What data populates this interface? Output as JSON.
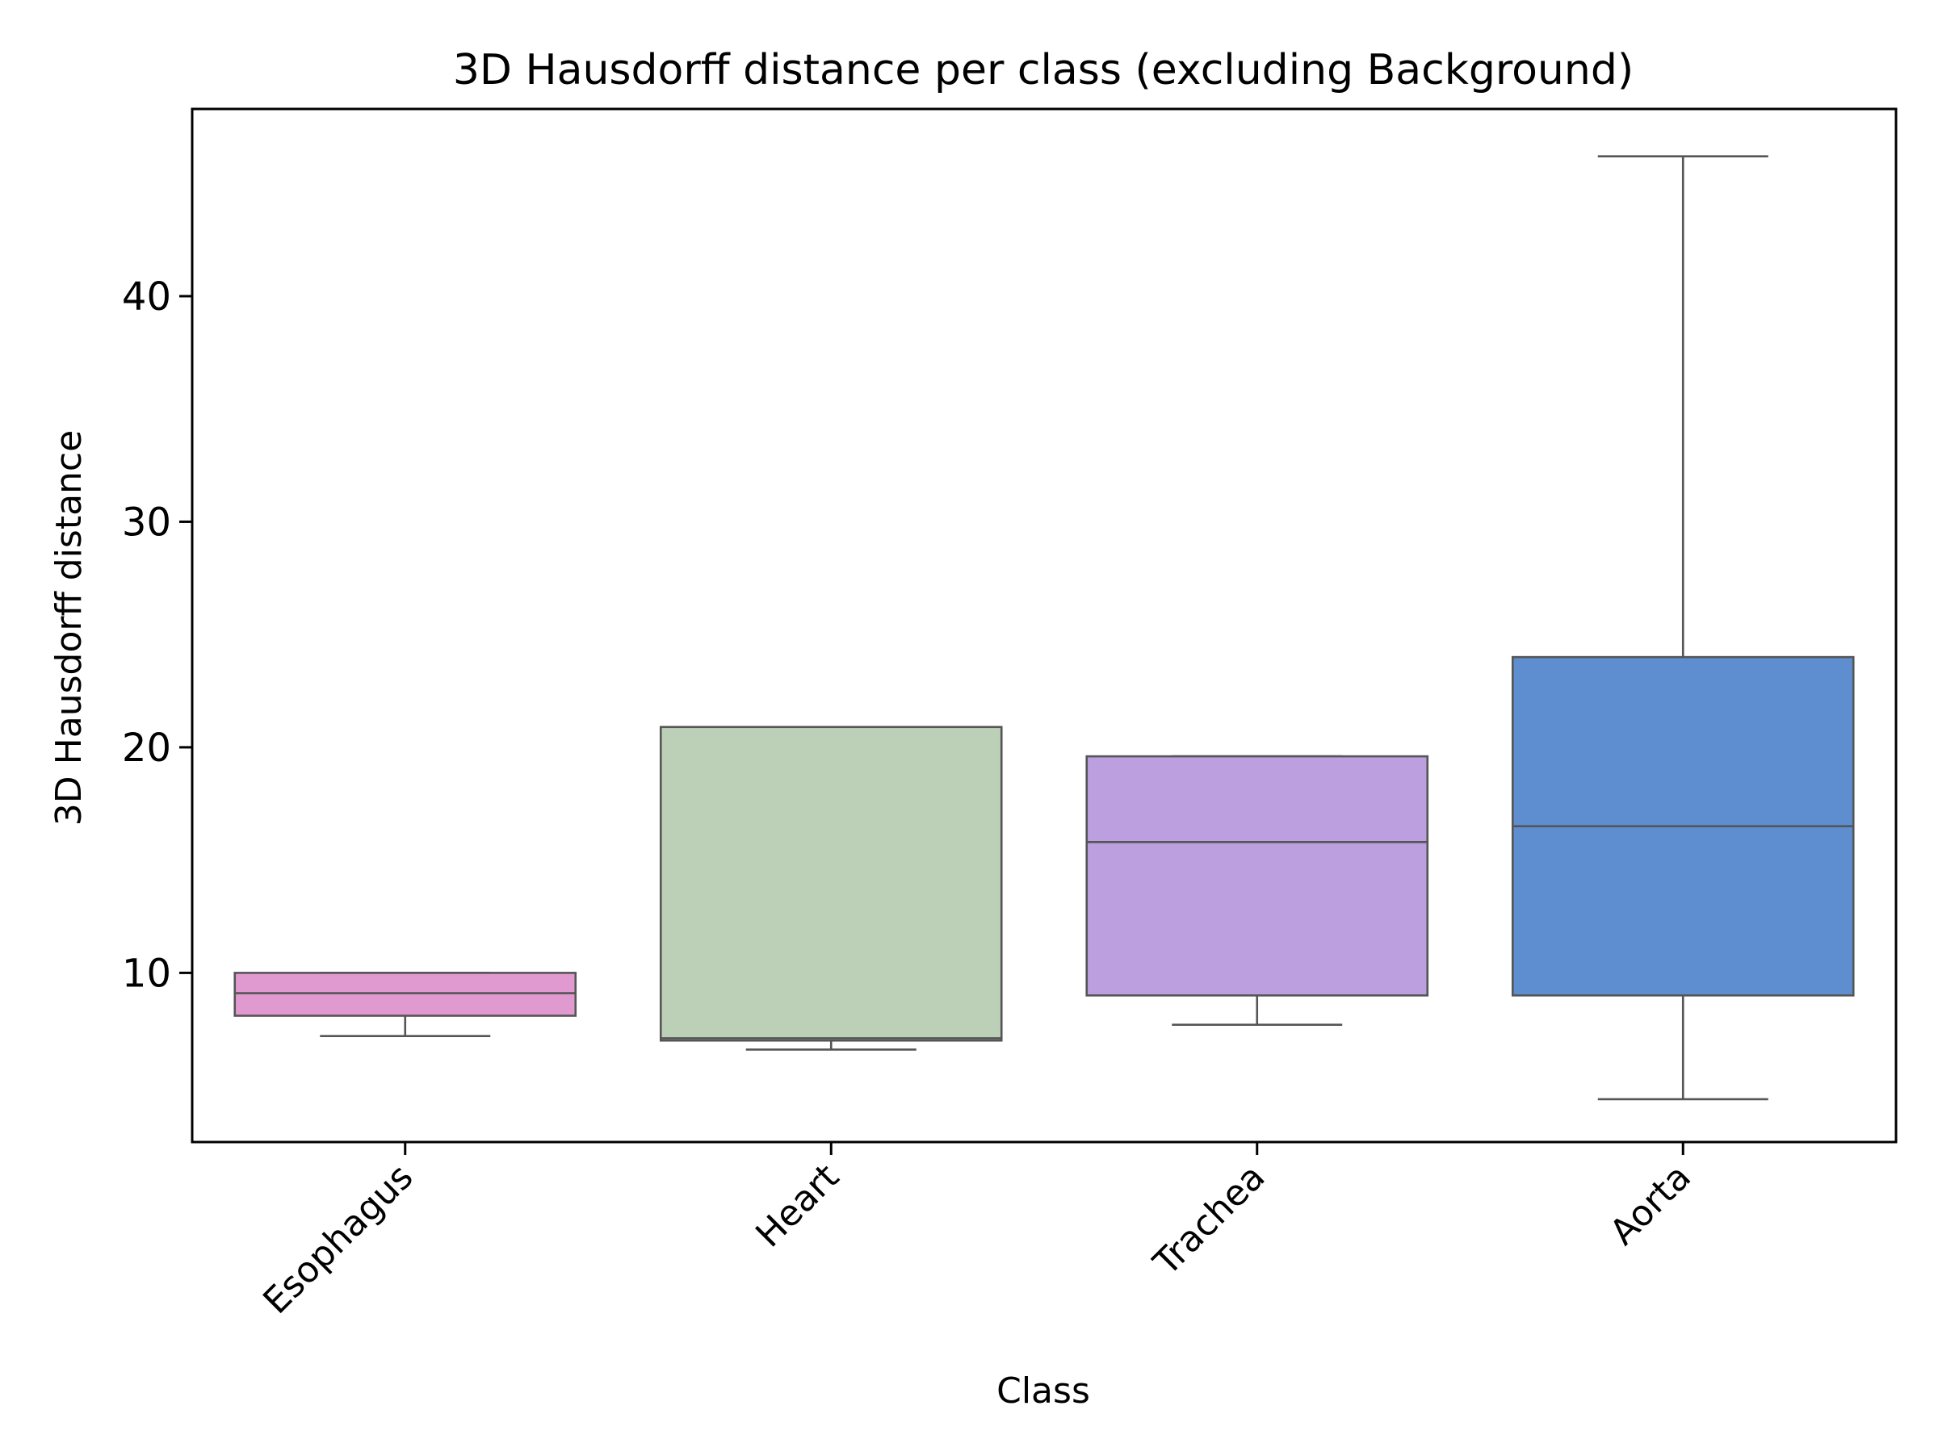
{
  "chart_data": {
    "type": "box",
    "title": "3D Hausdorff distance per class (excluding Background)",
    "xlabel": "Class",
    "ylabel": "3D Hausdorff distance",
    "ylim": [
      2.5,
      48.3
    ],
    "yticks": [
      10,
      20,
      30,
      40
    ],
    "grid": false,
    "legend": "none",
    "categories": [
      "Esophagus",
      "Heart",
      "Trachea",
      "Aorta"
    ],
    "boxes": [
      {
        "category": "Esophagus",
        "whislo": 7.2,
        "q1": 8.1,
        "med": 9.1,
        "q3": 10.0,
        "whishi": 10.0,
        "color": "#e09ad0"
      },
      {
        "category": "Heart",
        "whislo": 6.6,
        "q1": 7.0,
        "med": 7.1,
        "q3": 20.9,
        "whishi": 20.9,
        "color": "#bcd0b7"
      },
      {
        "category": "Trachea",
        "whislo": 7.7,
        "q1": 9.0,
        "med": 15.8,
        "q3": 19.6,
        "whishi": 19.6,
        "color": "#bb9fdf"
      },
      {
        "category": "Aorta",
        "whislo": 4.4,
        "q1": 9.0,
        "med": 16.5,
        "q3": 24.0,
        "whishi": 46.2,
        "color": "#5e8ecf"
      }
    ]
  }
}
